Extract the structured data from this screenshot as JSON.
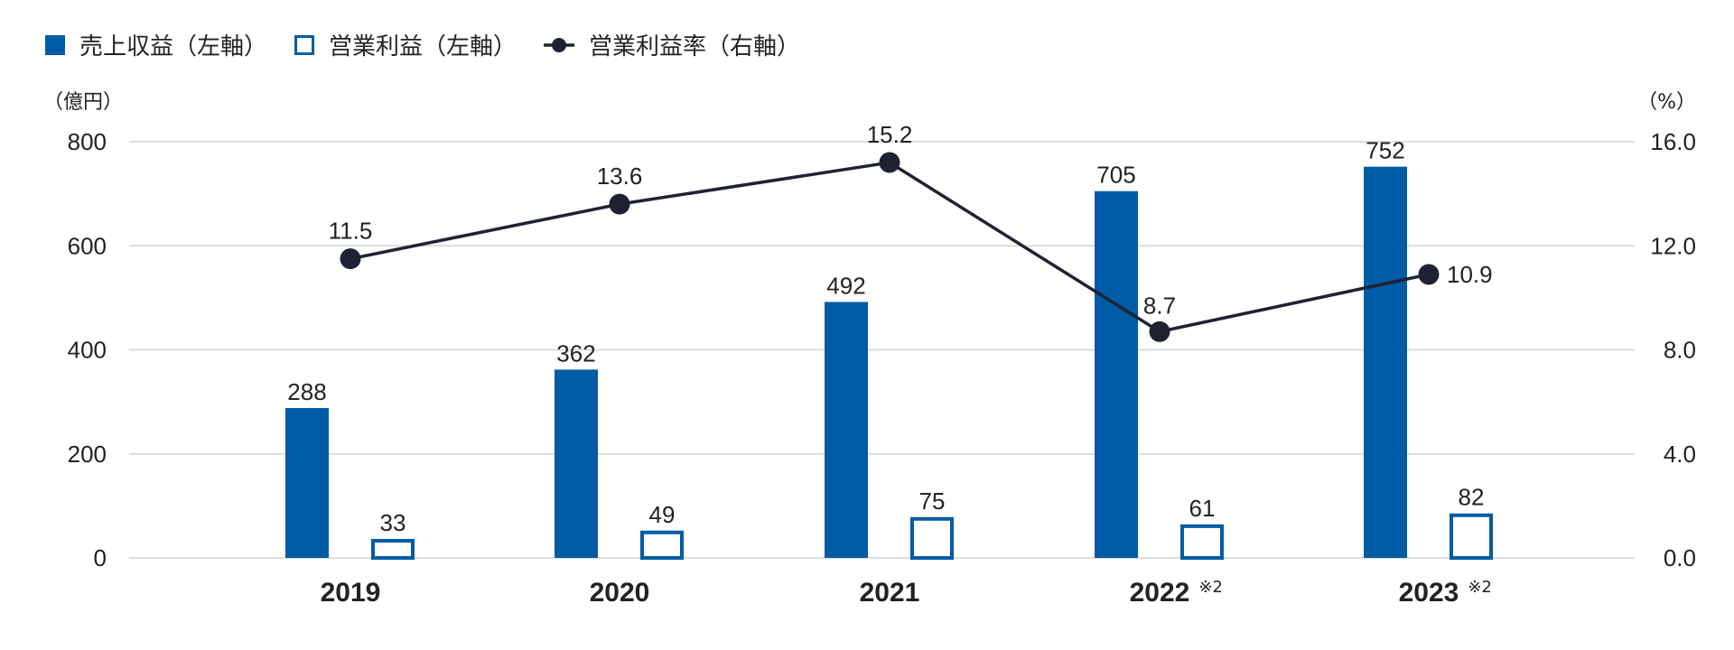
{
  "chart_data": {
    "type": "bar",
    "categories": [
      "2019",
      "2020",
      "2021",
      "2022",
      "2023"
    ],
    "category_notes": [
      "",
      "",
      "",
      "※2",
      "※2"
    ],
    "series": [
      {
        "name": "売上収益（左軸）",
        "kind": "bar",
        "style": "filled",
        "axis": "left",
        "color": "#005BA6",
        "values": [
          288,
          362,
          492,
          705,
          752
        ]
      },
      {
        "name": "営業利益（左軸）",
        "kind": "bar",
        "style": "outline",
        "axis": "left",
        "color": "#005BA6",
        "values": [
          33,
          49,
          75,
          61,
          82
        ]
      },
      {
        "name": "営業利益率（右軸）",
        "kind": "line",
        "axis": "right",
        "color": "#1e2233",
        "values": [
          11.5,
          13.6,
          15.2,
          8.7,
          10.9
        ]
      }
    ],
    "left_axis": {
      "unit": "（億円）",
      "ylim": [
        0,
        800
      ],
      "ticks": [
        "0",
        "200",
        "400",
        "600",
        "800"
      ]
    },
    "right_axis": {
      "unit": "（%）",
      "ylim": [
        0,
        16
      ],
      "ticks": [
        "0.0",
        "4.0",
        "8.0",
        "12.0",
        "16.0"
      ]
    },
    "line_labels": [
      "11.5",
      "13.6",
      "15.2",
      "8.7",
      "10.9"
    ],
    "grid": true,
    "legend_position": "top-left"
  }
}
